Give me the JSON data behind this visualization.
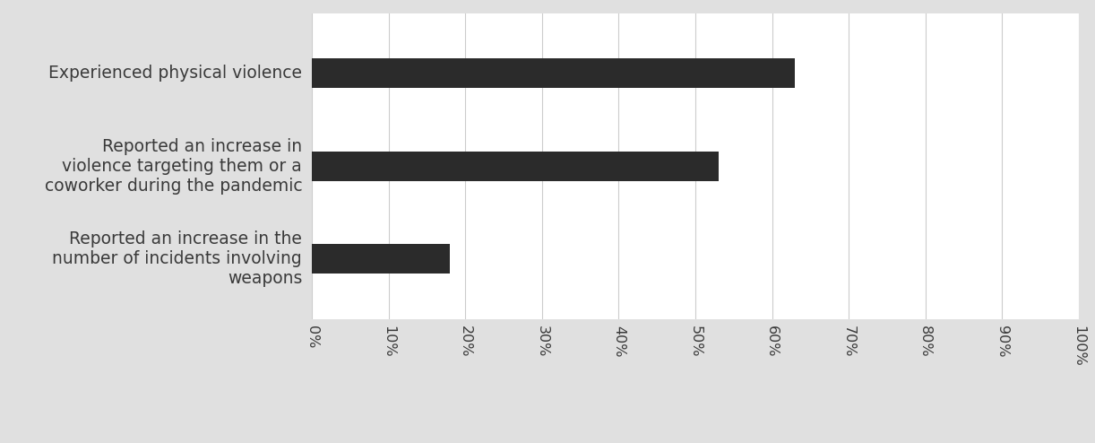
{
  "categories": [
    "Reported an increase in the\nnumber of incidents involving\nweapons",
    "Reported an increase in\nviolence targeting them or a\ncoworker during the pandemic",
    "Experienced physical violence"
  ],
  "values": [
    18,
    53,
    63
  ],
  "bar_color": "#2b2b2b",
  "background_color": "#e0e0e0",
  "plot_bg_color": "#ffffff",
  "grid_color": "#cccccc",
  "text_color": "#3a3a3a",
  "xlim": [
    0,
    100
  ],
  "xticks": [
    0,
    10,
    20,
    30,
    40,
    50,
    60,
    70,
    80,
    90,
    100
  ],
  "bar_height": 0.32,
  "label_fontsize": 13.5,
  "tick_fontsize": 11.5
}
